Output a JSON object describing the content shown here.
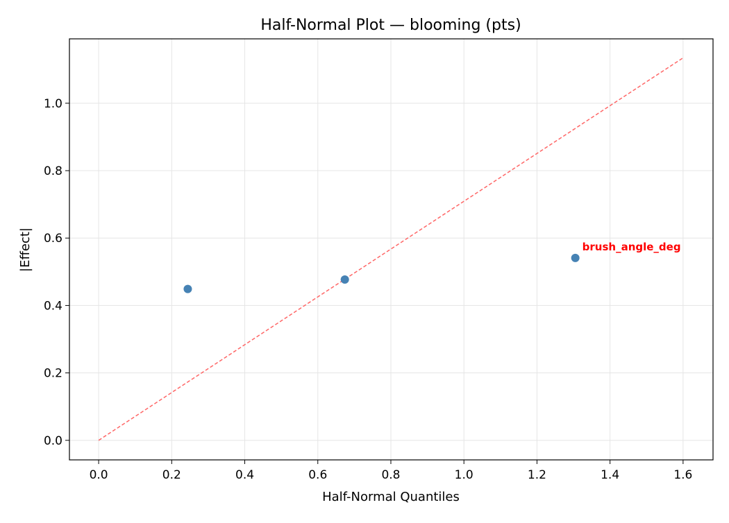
{
  "chart_data": {
    "type": "scatter",
    "title": "Half-Normal Plot — blooming (pts)",
    "xlabel": "Half-Normal Quantiles",
    "ylabel": "|Effect|",
    "xlim": [
      -0.08,
      1.682
    ],
    "ylim": [
      -0.058,
      1.191
    ],
    "xticks": [
      "0.0",
      "0.2",
      "0.4",
      "0.6",
      "0.8",
      "1.0",
      "1.2",
      "1.4",
      "1.6"
    ],
    "yticks": [
      "0.0",
      "0.2",
      "0.4",
      "0.6",
      "0.8",
      "1.0"
    ],
    "grid": true,
    "points": [
      {
        "x": 0.244,
        "y": 0.449,
        "label": ""
      },
      {
        "x": 0.674,
        "y": 0.477,
        "label": ""
      },
      {
        "x": 1.305,
        "y": 0.541,
        "label": "brush_angle_deg"
      }
    ],
    "reference_line": {
      "x": [
        0,
        1.602
      ],
      "y": [
        0,
        1.136
      ],
      "style": "dashed"
    },
    "colors": {
      "points": "#4682b4",
      "reference_line": "#ff6666",
      "annotation": "#ff0000"
    }
  }
}
